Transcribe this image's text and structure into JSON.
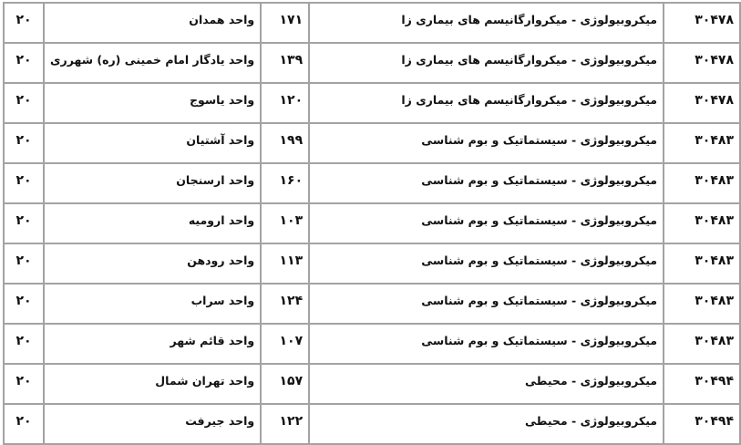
{
  "rows": [
    {
      "code": "۳۰۴۷۸",
      "field": "میکروبیولوژی - میکروارگانیسم های بیماری زا",
      "unit_code": "۱۷۱",
      "unit": "واحد همدان",
      "capacity": "۲۰"
    },
    {
      "code": "۳۰۴۷۸",
      "field": "میکروبیولوژی - میکروارگانیسم های بیماری زا",
      "unit_code": "۱۳۹",
      "unit": "واحد یادگار امام خمینی (ره) شهرری",
      "capacity": "۲۰"
    },
    {
      "code": "۳۰۴۷۸",
      "field": "میکروبیولوژی - میکروارگانیسم های بیماری زا",
      "unit_code": "۱۲۰",
      "unit": "واحد یاسوج",
      "capacity": "۲۰"
    },
    {
      "code": "۳۰۴۸۳",
      "field": "میکروبیولوژی - سیستماتیک و بوم شناسی",
      "unit_code": "۱۹۹",
      "unit": "واحد آشتیان",
      "capacity": "۲۰"
    },
    {
      "code": "۳۰۴۸۳",
      "field": "میکروبیولوژی - سیستماتیک و بوم شناسی",
      "unit_code": "۱۶۰",
      "unit": "واحد ارسنجان",
      "capacity": "۲۰"
    },
    {
      "code": "۳۰۴۸۳",
      "field": "میکروبیولوژی - سیستماتیک و بوم شناسی",
      "unit_code": "۱۰۳",
      "unit": "واحد ارومیه",
      "capacity": "۲۰"
    },
    {
      "code": "۳۰۴۸۳",
      "field": "میکروبیولوژی - سیستماتیک و بوم شناسی",
      "unit_code": "۱۱۳",
      "unit": "واحد رودهن",
      "capacity": "۲۰"
    },
    {
      "code": "۳۰۴۸۳",
      "field": "میکروبیولوژی - سیستماتیک و بوم شناسی",
      "unit_code": "۱۲۴",
      "unit": "واحد سراب",
      "capacity": "۲۰"
    },
    {
      "code": "۳۰۴۸۳",
      "field": "میکروبیولوژی - سیستماتیک و بوم شناسی",
      "unit_code": "۱۰۷",
      "unit": "واحد قائم شهر",
      "capacity": "۲۰"
    },
    {
      "code": "۳۰۴۹۴",
      "field": "میکروبیولوژی - محیطی",
      "unit_code": "۱۵۷",
      "unit": "واحد تهران شمال",
      "capacity": "۲۰"
    },
    {
      "code": "۳۰۴۹۴",
      "field": "میکروبیولوژی - محیطی",
      "unit_code": "۱۲۲",
      "unit": "واحد جیرفت",
      "capacity": "۲۰"
    }
  ]
}
